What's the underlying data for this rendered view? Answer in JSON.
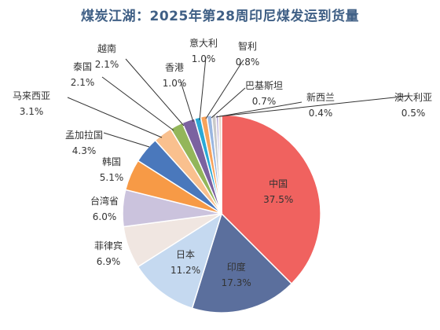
{
  "chart_data": {
    "type": "pie",
    "title": "煤炭江湖：2025年第28周印尼煤发运到货量",
    "slices": [
      {
        "name": "中国",
        "value": 37.5,
        "label": "37.5%",
        "color": "#f0625f"
      },
      {
        "name": "印度",
        "value": 17.3,
        "label": "17.3%",
        "color": "#5b6f9d"
      },
      {
        "name": "日本",
        "value": 11.2,
        "label": "11.2%",
        "color": "#c5d9f0"
      },
      {
        "name": "菲律宾",
        "value": 6.9,
        "label": "6.9%",
        "color": "#f0e6e1"
      },
      {
        "name": "台湾省",
        "value": 6.0,
        "label": "6.0%",
        "color": "#cbc3dd"
      },
      {
        "name": "韩国",
        "value": 5.1,
        "label": "5.1%",
        "color": "#f79a46"
      },
      {
        "name": "孟加拉国",
        "value": 4.3,
        "label": "4.3%",
        "color": "#4a78bc"
      },
      {
        "name": "马来西亚",
        "value": 3.1,
        "label": "3.1%",
        "color": "#f9c08e"
      },
      {
        "name": "泰国",
        "value": 2.1,
        "label": "2.1%",
        "color": "#93b65a"
      },
      {
        "name": "越南",
        "value": 2.1,
        "label": "2.1%",
        "color": "#7b62a0"
      },
      {
        "name": "香港",
        "value": 1.0,
        "label": "1.0%",
        "color": "#2aa9d6"
      },
      {
        "name": "意大利",
        "value": 1.0,
        "label": "1.0%",
        "color": "#f7a35c"
      },
      {
        "name": "智利",
        "value": 0.8,
        "label": "0.8%",
        "color": "#9ab6e0"
      },
      {
        "name": "巴基斯坦",
        "value": 0.7,
        "label": "0.7%",
        "color": "#c9c9c9"
      },
      {
        "name": "新西兰",
        "value": 0.4,
        "label": "0.4%",
        "color": "#b4a7d6"
      },
      {
        "name": "澳大利亚",
        "value": 0.5,
        "label": "0.5%",
        "color": "#e8d6c8"
      }
    ]
  }
}
